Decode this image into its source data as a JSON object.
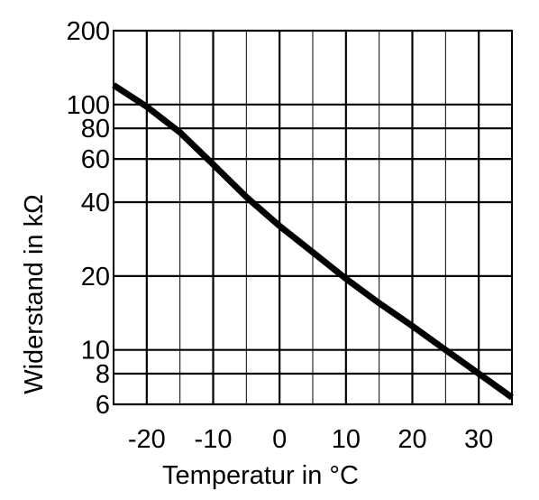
{
  "chart_data": {
    "type": "line",
    "title": "",
    "xlabel": "Temperatur in °C",
    "ylabel": "Widerstand in kΩ",
    "xlim": [
      -25,
      35
    ],
    "ylim": [
      6,
      200
    ],
    "yscale": "log",
    "grid": true,
    "x_ticks": [
      -20,
      -10,
      0,
      10,
      20,
      30
    ],
    "x_tick_labels": [
      "-20",
      "-10",
      "0",
      "10",
      "20",
      "30"
    ],
    "x_gridlines": [
      -20,
      -15,
      -10,
      -5,
      0,
      5,
      10,
      15,
      20,
      25,
      30
    ],
    "y_ticks": [
      6,
      8,
      10,
      20,
      40,
      60,
      80,
      100,
      200
    ],
    "y_tick_labels": [
      "6",
      "8",
      "10",
      "20",
      "40",
      "60",
      "80",
      "100",
      "200"
    ],
    "series": [
      {
        "name": "",
        "color": "#000000",
        "x": [
          -25,
          -20,
          -15,
          -10,
          -5,
          0,
          5,
          10,
          15,
          20,
          25,
          30,
          35
        ],
        "y": [
          120,
          98,
          77,
          57,
          42,
          32,
          25,
          19.5,
          15.5,
          12.5,
          10,
          8,
          6.4
        ]
      }
    ]
  }
}
